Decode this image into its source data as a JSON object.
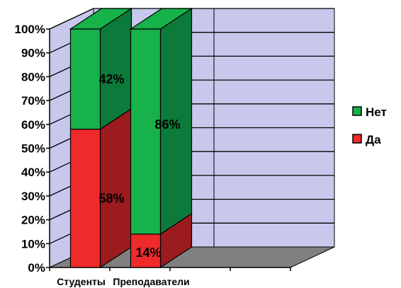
{
  "chart_data": {
    "type": "bar",
    "stacked": true,
    "percent_stacked": true,
    "three_d": true,
    "categories": [
      "Студенты",
      "Преподаватели"
    ],
    "series": [
      {
        "name": "Да",
        "values": [
          58,
          14
        ],
        "labels": [
          "58%",
          "14%"
        ],
        "color": "#ee2a2a",
        "side_color": "#9c1b1e"
      },
      {
        "name": "Нет",
        "values": [
          42,
          86
        ],
        "labels": [
          "42%",
          "86%"
        ],
        "color": "#17b24a",
        "side_color": "#0c7a3a"
      }
    ],
    "ylim": [
      0,
      100
    ],
    "yticks": [
      "0%",
      "10%",
      "20%",
      "30%",
      "40%",
      "50%",
      "60%",
      "70%",
      "80%",
      "90%",
      "100%"
    ],
    "grid": true,
    "legend_position": "right",
    "legend_order": [
      "Нет",
      "Да"
    ],
    "wall_color": "#c8c8ec",
    "floor_color": "#808080"
  }
}
